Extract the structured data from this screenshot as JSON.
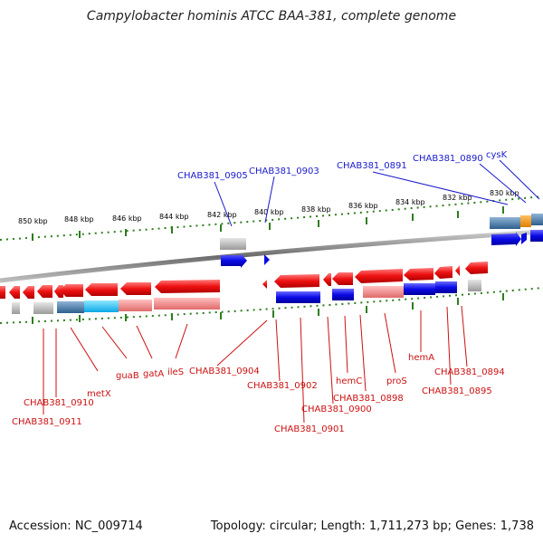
{
  "title": "Campylobacter hominis ATCC BAA-381, complete genome",
  "footer": {
    "accession": "Accession: NC_009714",
    "summary": "Topology: circular; Length: 1,711,273 bp; Genes: 1,738"
  },
  "ruler_labels": [
    "850 kbp",
    "848 kbp",
    "846 kbp",
    "844 kbp",
    "842 kbp",
    "840 kbp",
    "838 kbp",
    "836 kbp",
    "834 kbp",
    "832 kbp",
    "830 kbp"
  ],
  "forward_gene_labels": [
    "CHAB381_0905",
    "CHAB381_0903",
    "CHAB381_0891",
    "CHAB381_0890",
    "cysK"
  ],
  "reverse_gene_labels": [
    "CHAB381_0910",
    "CHAB381_0911",
    "metX",
    "guaB",
    "gatA",
    "ileS",
    "CHAB381_0904",
    "CHAB381_0902",
    "CHAB381_0901",
    "CHAB381_0900",
    "hemC",
    "CHAB381_0898",
    "proS",
    "hemA",
    "CHAB381_0894",
    "CHAB381_0895"
  ],
  "colors": {
    "forward_label": "#1a1acc",
    "reverse_label": "#cc1111",
    "gene_red": "#ee1111",
    "gene_blue": "#0a0ae6",
    "tick_green": "#2e7d1e",
    "backbone": "#888888"
  }
}
